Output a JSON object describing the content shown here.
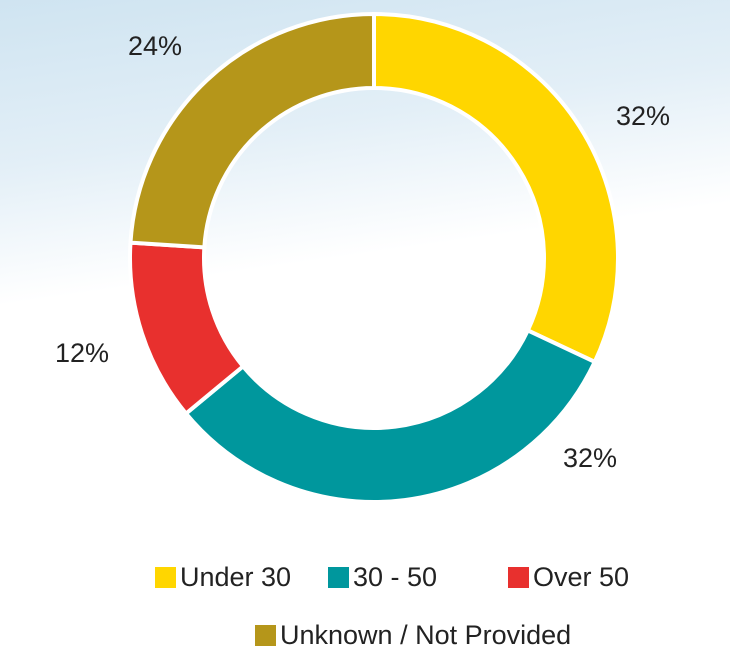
{
  "chart_data": {
    "type": "donut",
    "categories": [
      "Under 30",
      "30 - 50",
      "Over 50",
      "Unknown / Not Provided"
    ],
    "values": [
      32,
      32,
      12,
      24
    ],
    "value_labels": [
      "32%",
      "32%",
      "12%",
      "24%"
    ],
    "colors": [
      "#ffd600",
      "#00979d",
      "#e8302e",
      "#b5961a"
    ],
    "legend": "bottom"
  }
}
